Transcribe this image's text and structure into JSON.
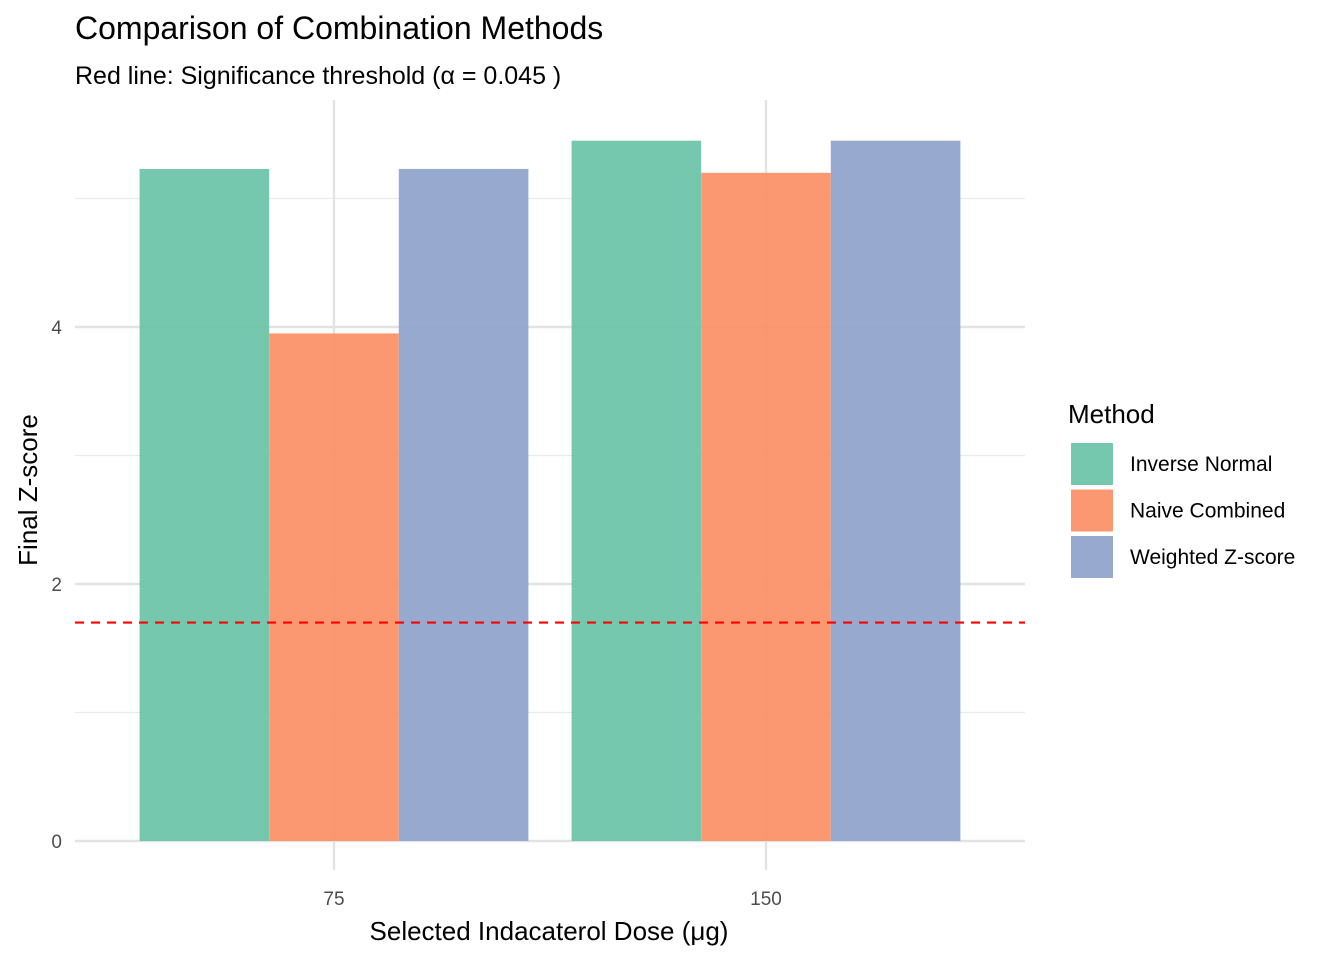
{
  "chart_data": {
    "type": "bar",
    "title": "Comparison of Combination Methods",
    "subtitle": "Red line: Significance threshold (α = 0.045 )",
    "xlabel": "Selected Indacaterol Dose (μg)",
    "ylabel": "Final Z-score",
    "categories": [
      "75",
      "150"
    ],
    "ylim": [
      0,
      5.6
    ],
    "yticks": [
      0,
      2,
      4
    ],
    "grid": true,
    "series": [
      {
        "name": "Inverse Normal",
        "values": [
          5.23,
          5.45
        ],
        "color": "#66c2a5"
      },
      {
        "name": "Naive Combined",
        "values": [
          3.95,
          5.2
        ],
        "color": "#fc8d62"
      },
      {
        "name": "Weighted Z-score",
        "values": [
          5.23,
          5.45
        ],
        "color": "#8da0cb"
      }
    ],
    "threshold": {
      "value": 1.7,
      "color": "#ff0000",
      "style": "dashed"
    },
    "legend": {
      "title": "Method",
      "placement": "right"
    }
  }
}
